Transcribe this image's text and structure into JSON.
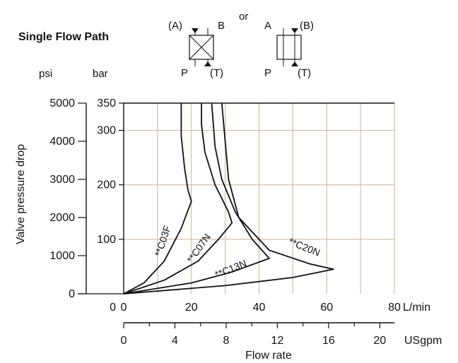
{
  "chart_data": {
    "type": "line",
    "title": "Single Flow Path",
    "symbols": {
      "connector": "or",
      "left": {
        "top_left": "(A)",
        "top_right": "B",
        "bottom_left": "P",
        "bottom_right": "(T)"
      },
      "right": {
        "top_left": "A",
        "top_right": "(B)",
        "bottom_left": "P",
        "bottom_right": "(T)"
      }
    },
    "ylabel": "Valve pressure drop",
    "y_unit_psi": "psi",
    "y_unit_bar": "bar",
    "xlabel": "Flow rate",
    "x_unit_lmin": "L/min",
    "x_unit_usgpm": "USgpm",
    "xlim": [
      0,
      80
    ],
    "ylim": [
      0,
      350
    ],
    "grid": true,
    "x_ticks": [
      0,
      20,
      40,
      60,
      80
    ],
    "usgpm_ticks": [
      0,
      4,
      8,
      12,
      16,
      20
    ],
    "bar_ticks": [
      100,
      200,
      300,
      350
    ],
    "psi_ticks": [
      0,
      1000,
      2000,
      3000,
      4000,
      5000
    ],
    "y_zero_label": "0",
    "series": [
      {
        "name": "**C03F",
        "points": [
          [
            0,
            0
          ],
          [
            6,
            20
          ],
          [
            12,
            60
          ],
          [
            17,
            120
          ],
          [
            20,
            170
          ],
          [
            19,
            190
          ],
          [
            18,
            230
          ],
          [
            17,
            290
          ],
          [
            17,
            350
          ]
        ]
      },
      {
        "name": "**C07N",
        "points": [
          [
            0,
            0
          ],
          [
            12,
            25
          ],
          [
            22,
            60
          ],
          [
            28,
            100
          ],
          [
            32,
            130
          ],
          [
            31,
            150
          ],
          [
            27,
            200
          ],
          [
            24,
            260
          ],
          [
            23,
            310
          ],
          [
            23,
            350
          ]
        ]
      },
      {
        "name": "**C13N",
        "points": [
          [
            0,
            0
          ],
          [
            20,
            20
          ],
          [
            32,
            40
          ],
          [
            43,
            65
          ],
          [
            38,
            100
          ],
          [
            33,
            150
          ],
          [
            29,
            210
          ],
          [
            27,
            270
          ],
          [
            26,
            350
          ]
        ]
      },
      {
        "name": "**C20N",
        "points": [
          [
            0,
            0
          ],
          [
            30,
            15
          ],
          [
            50,
            30
          ],
          [
            62,
            45
          ],
          [
            55,
            55
          ],
          [
            43,
            80
          ],
          [
            34,
            140
          ],
          [
            31,
            210
          ],
          [
            30,
            280
          ],
          [
            29,
            350
          ]
        ]
      }
    ]
  }
}
